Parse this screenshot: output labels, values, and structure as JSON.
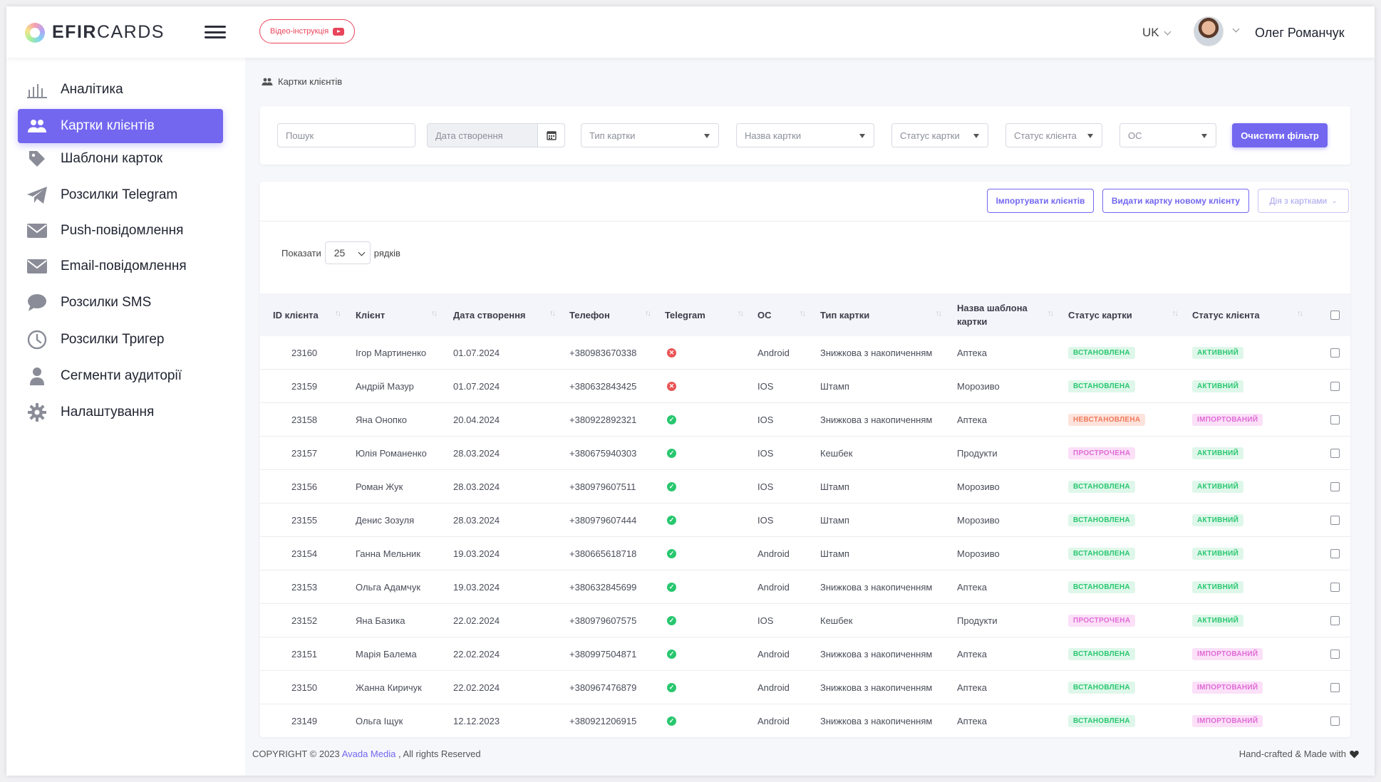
{
  "header": {
    "logo_bold": "EFIR",
    "logo_light": "CARDS",
    "video_label": "Відео-інструкція",
    "lang": "UK",
    "user_name": "Олег Романчук"
  },
  "sidebar": {
    "items": [
      {
        "label": "Аналітика",
        "icon": "analytics-icon",
        "active": false
      },
      {
        "label": "Картки клієнтів",
        "icon": "users-icon",
        "active": true
      },
      {
        "label": "Шаблони карток",
        "icon": "tag-icon",
        "active": false
      },
      {
        "label": "Розсилки Telegram",
        "icon": "telegram-icon",
        "active": false
      },
      {
        "label": "Push-повідомлення",
        "icon": "envelope-icon",
        "active": false
      },
      {
        "label": "Email-повідомлення",
        "icon": "envelope-icon",
        "active": false
      },
      {
        "label": "Розсилки SMS",
        "icon": "chat-bubble-icon",
        "active": false
      },
      {
        "label": "Розсилки Тригер",
        "icon": "clock-icon",
        "active": false
      },
      {
        "label": "Сегменти аудиторії",
        "icon": "person-icon",
        "active": false
      },
      {
        "label": "Налаштування",
        "icon": "gear-icon",
        "active": false
      }
    ]
  },
  "breadcrumb": "Картки клієнтів",
  "filters": {
    "search_placeholder": "Пошук",
    "date_placeholder": "Дата створення",
    "card_type": "Тип картки",
    "card_name": "Назва картки",
    "card_status": "Статус картки",
    "client_status": "Статус клієнта",
    "os": "ОС",
    "clear_label": "Очистити фільтр"
  },
  "actions": {
    "import": "Імпортувати клієнтів",
    "issue": "Видати картку новому клієнту",
    "bulk": "Дія з картками"
  },
  "paging": {
    "show": "Показати",
    "rows_value": "25",
    "rows_label": "рядків"
  },
  "table": {
    "headers": {
      "id": "ID клієнта",
      "client": "Клієнт",
      "created": "Дата створення",
      "phone": "Телефон",
      "telegram": "Telegram",
      "os": "ОС",
      "card_type": "Тип картки",
      "template_1": "Назва шаблона",
      "template_2": "картки",
      "card_status": "Статус картки",
      "client_status": "Статус клієнта"
    },
    "rows": [
      {
        "id": "23160",
        "client": "Ігор Мартиненко",
        "date": "01.07.2024",
        "phone": "+380983670338",
        "telegram": "no",
        "os": "Android",
        "type": "Знижкова з накопиченням",
        "template": "Аптека",
        "card_status": "ВСТАНОВЛЕНА",
        "client_status": "АКТИВНИЙ"
      },
      {
        "id": "23159",
        "client": "Андрій Мазур",
        "date": "01.07.2024",
        "phone": "+380632843425",
        "telegram": "no",
        "os": "IOS",
        "type": "Штамп",
        "template": "Морозиво",
        "card_status": "ВСТАНОВЛЕНА",
        "client_status": "АКТИВНИЙ"
      },
      {
        "id": "23158",
        "client": "Яна Онопко",
        "date": "20.04.2024",
        "phone": "+380922892321",
        "telegram": "yes",
        "os": "IOS",
        "type": "Знижкова з накопиченням",
        "template": "Аптека",
        "card_status": "НЕВСТАНОВЛЕНА",
        "client_status": "ІМПОРТОВАНИЙ"
      },
      {
        "id": "23157",
        "client": "Юлія Романенко",
        "date": "28.03.2024",
        "phone": "+380675940303",
        "telegram": "yes",
        "os": "IOS",
        "type": "Кешбек",
        "template": "Продукти",
        "card_status": "ПРОСТРОЧЕНА",
        "client_status": "АКТИВНИЙ"
      },
      {
        "id": "23156",
        "client": "Роман Жук",
        "date": "28.03.2024",
        "phone": "+380979607511",
        "telegram": "yes",
        "os": "IOS",
        "type": "Штамп",
        "template": "Морозиво",
        "card_status": "ВСТАНОВЛЕНА",
        "client_status": "АКТИВНИЙ"
      },
      {
        "id": "23155",
        "client": "Денис Зозуля",
        "date": "28.03.2024",
        "phone": "+380979607444",
        "telegram": "yes",
        "os": "IOS",
        "type": "Штамп",
        "template": "Морозиво",
        "card_status": "ВСТАНОВЛЕНА",
        "client_status": "АКТИВНИЙ"
      },
      {
        "id": "23154",
        "client": "Ганна Мельник",
        "date": "19.03.2024",
        "phone": "+380665618718",
        "telegram": "yes",
        "os": "Android",
        "type": "Штамп",
        "template": "Морозиво",
        "card_status": "ВСТАНОВЛЕНА",
        "client_status": "АКТИВНИЙ"
      },
      {
        "id": "23153",
        "client": "Ольга Адамчук",
        "date": "19.03.2024",
        "phone": "+380632845699",
        "telegram": "yes",
        "os": "Android",
        "type": "Знижкова з накопиченням",
        "template": "Аптека",
        "card_status": "ВСТАНОВЛЕНА",
        "client_status": "АКТИВНИЙ"
      },
      {
        "id": "23152",
        "client": "Яна Базика",
        "date": "22.02.2024",
        "phone": "+380979607575",
        "telegram": "yes",
        "os": "IOS",
        "type": "Кешбек",
        "template": "Продукти",
        "card_status": "ПРОСТРОЧЕНА",
        "client_status": "АКТИВНИЙ"
      },
      {
        "id": "23151",
        "client": "Марія Балема",
        "date": "22.02.2024",
        "phone": "+380997504871",
        "telegram": "yes",
        "os": "Android",
        "type": "Знижкова з накопиченням",
        "template": "Аптека",
        "card_status": "ВСТАНОВЛЕНА",
        "client_status": "ІМПОРТОВАНИЙ"
      },
      {
        "id": "23150",
        "client": "Жанна Киричук",
        "date": "22.02.2024",
        "phone": "+380967476879",
        "telegram": "yes",
        "os": "Android",
        "type": "Знижкова з накопиченням",
        "template": "Аптека",
        "card_status": "ВСТАНОВЛЕНА",
        "client_status": "ІМПОРТОВАНИЙ"
      },
      {
        "id": "23149",
        "client": "Ольга Іщук",
        "date": "12.12.2023",
        "phone": "+380921206915",
        "telegram": "yes",
        "os": "Android",
        "type": "Знижкова з накопиченням",
        "template": "Аптека",
        "card_status": "ВСТАНОВЛЕНА",
        "client_status": "ІМПОРТОВАНИЙ"
      }
    ]
  },
  "footer": {
    "copyright": "COPYRIGHT © 2023",
    "company": "Avada Media",
    "rights": ", All rights Reserved",
    "made": "Hand-crafted & Made with"
  },
  "colors": {
    "accent": "#7367f0",
    "success": "#28c76f",
    "danger": "#ea5455",
    "warning": "#ff9f43",
    "pink": "#e06bd6"
  }
}
